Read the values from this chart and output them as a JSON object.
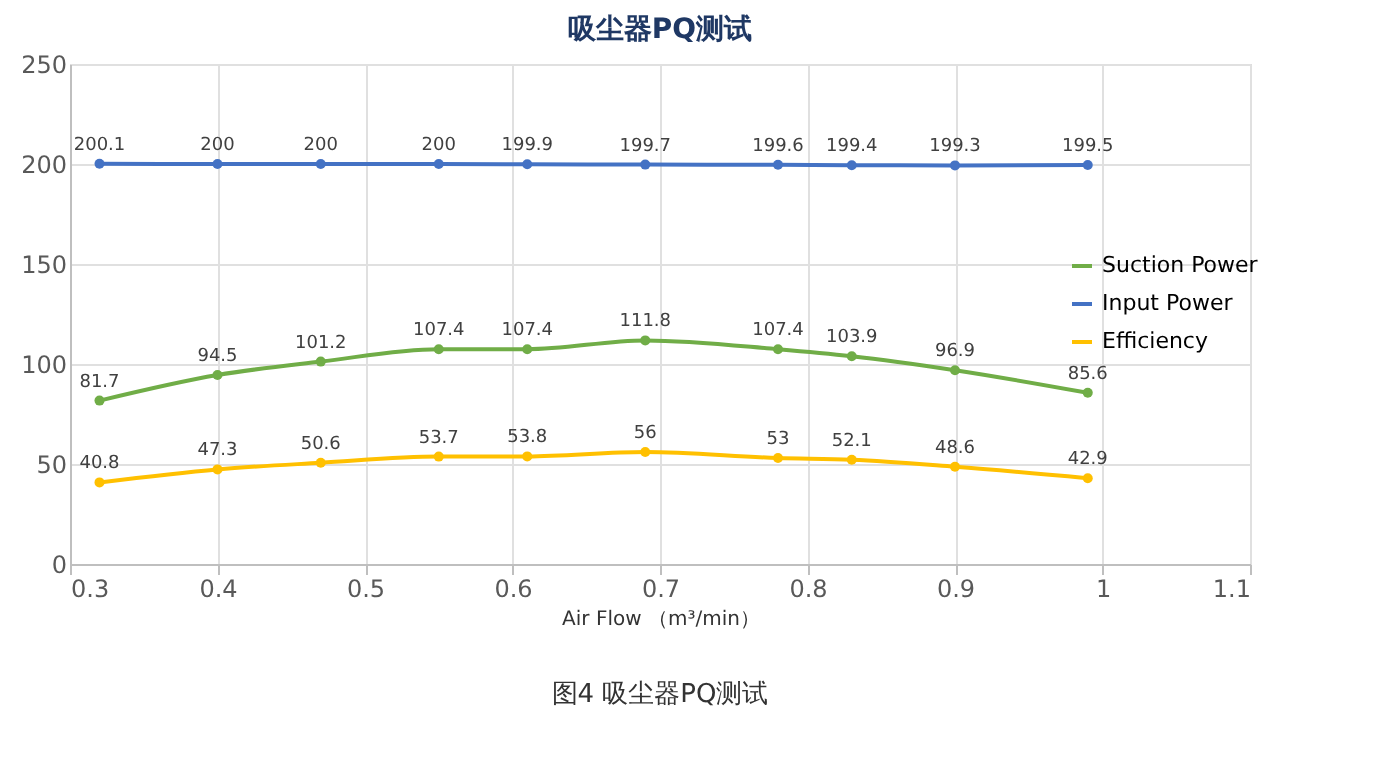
{
  "chart_data": {
    "type": "line",
    "title": "吸尘器PQ测试",
    "xlabel": "Air Flow （m³/min）",
    "x": [
      0.32,
      0.4,
      0.47,
      0.55,
      0.61,
      0.69,
      0.78,
      0.83,
      0.9,
      0.99
    ],
    "series": [
      {
        "name": "Suction Power",
        "color": "#70ad47",
        "values": [
          81.7,
          94.5,
          101.2,
          107.4,
          107.4,
          111.8,
          107.4,
          103.9,
          96.9,
          85.6
        ]
      },
      {
        "name": "Input Power",
        "color": "#4472c4",
        "values": [
          200.1,
          200,
          200,
          200,
          199.9,
          199.7,
          199.6,
          199.4,
          199.3,
          199.5
        ]
      },
      {
        "name": "Efficiency",
        "color": "#ffc000",
        "values": [
          40.8,
          47.3,
          50.6,
          53.7,
          53.8,
          56,
          53,
          52.1,
          48.6,
          42.9
        ]
      }
    ],
    "xlim": [
      0.3,
      1.1
    ],
    "xticks": [
      0.3,
      0.4,
      0.5,
      0.6,
      0.7,
      0.8,
      0.9,
      1,
      1.1
    ],
    "ylim": [
      0,
      250
    ],
    "yticks": [
      0,
      50,
      100,
      150,
      200,
      250
    ],
    "grid": true,
    "legend": "right",
    "marker": "circle",
    "line_style": "solid",
    "data_labels": true,
    "annotations": [
      "图4 吸尘器PQ测试"
    ]
  }
}
